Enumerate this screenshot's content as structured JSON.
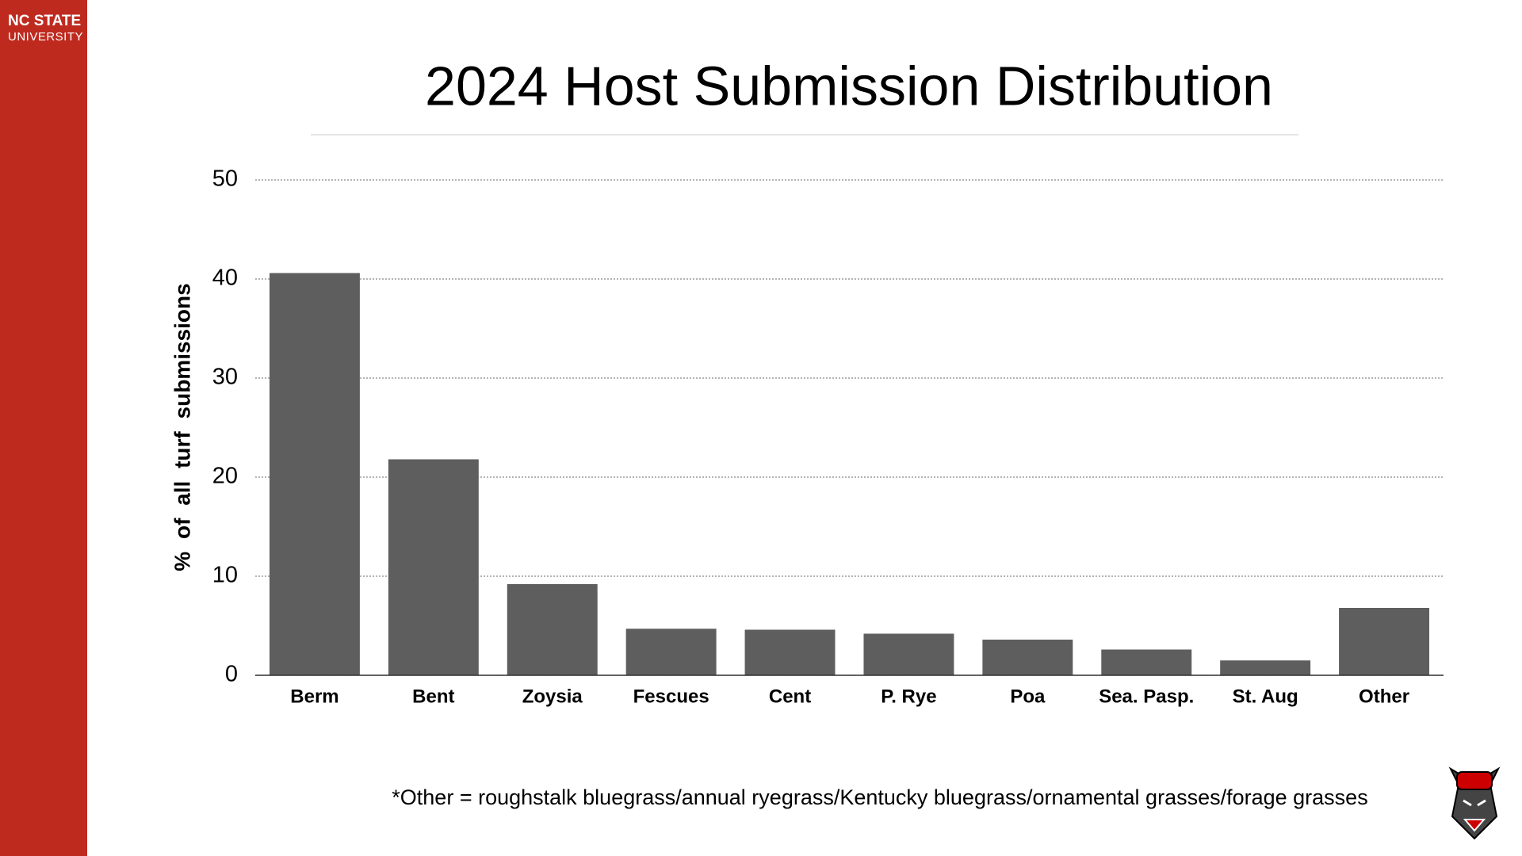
{
  "brand": [
    "NC STATE",
    "UNIVERSITY"
  ],
  "chart_data": {
    "type": "bar",
    "title": "2024 Host Submission Distribution",
    "y_label": "% of all turf submissions",
    "categories": [
      "Berm",
      "Bent",
      "Zoysia",
      "Fescues",
      "Cent",
      "P. Rye",
      "Poa",
      "Sea. Pasp.",
      "St. Aug",
      "Other"
    ],
    "values": [
      40.6,
      21.8,
      9.2,
      4.7,
      4.6,
      4.2,
      3.6,
      2.6,
      1.5,
      6.8
    ],
    "color": "#5e5e5e",
    "ylim": [
      0,
      50
    ],
    "yticks": [
      0,
      10,
      20,
      30,
      40,
      50
    ],
    "grid": true,
    "annotations": [
      "*Other = roughstalk bluegrass/annual ryegrass/Kentucky bluegrass/ornamental grasses/forage grasses"
    ]
  }
}
